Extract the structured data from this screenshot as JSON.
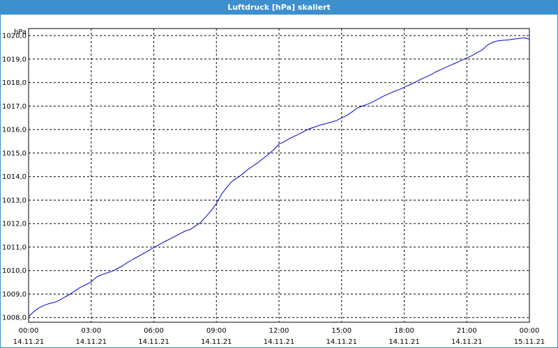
{
  "window": {
    "title": "Luftdruck [hPa] skaliert"
  },
  "colors": {
    "title_bar": "#3d8fce",
    "line": "#0000cc",
    "grid": "#000000",
    "background": "#ffffff"
  },
  "chart_data": {
    "type": "line",
    "title": "Luftdruck [hPa] skaliert",
    "ylabel": "hPa",
    "xlabel": "",
    "ylim": [
      1007.8,
      1020.3
    ],
    "grid": true,
    "grid_style": "dashed",
    "y_ticks": [
      "1008,0",
      "1009,0",
      "1010,0",
      "1011,0",
      "1012,0",
      "1013,0",
      "1014,0",
      "1015,0",
      "1016,0",
      "1017,0",
      "1018,0",
      "1019,0",
      "1020,0"
    ],
    "y_tick_values": [
      1008,
      1009,
      1010,
      1011,
      1012,
      1013,
      1014,
      1015,
      1016,
      1017,
      1018,
      1019,
      1020
    ],
    "x_ticks": [
      {
        "time": "00:00",
        "date": "14.11.21"
      },
      {
        "time": "03:00",
        "date": "14.11.21"
      },
      {
        "time": "06:00",
        "date": "14.11.21"
      },
      {
        "time": "09:00",
        "date": "14.11.21"
      },
      {
        "time": "12:00",
        "date": "14.11.21"
      },
      {
        "time": "15:00",
        "date": "14.11.21"
      },
      {
        "time": "18:00",
        "date": "14.11.21"
      },
      {
        "time": "21:00",
        "date": "14.11.21"
      },
      {
        "time": "00:00",
        "date": "15.11.21"
      }
    ],
    "x_tick_hours": [
      0,
      3,
      6,
      9,
      12,
      15,
      18,
      21,
      24
    ],
    "x_range_hours": [
      0,
      24
    ],
    "series": [
      {
        "x_hours": [
          0,
          0.25,
          0.5,
          0.75,
          1.0,
          1.25,
          1.5,
          1.75,
          2.0,
          2.25,
          2.5,
          2.75,
          3.0,
          3.25,
          3.5,
          3.75,
          4.0,
          4.25,
          4.5,
          4.75,
          5.0,
          5.5,
          6.0,
          6.5,
          7.0,
          7.5,
          7.75,
          8.0,
          8.25,
          8.5,
          8.75,
          9.0,
          9.25,
          9.5,
          9.75,
          10.0,
          10.25,
          10.5,
          10.75,
          11.0,
          11.25,
          11.5,
          11.75,
          12.0,
          12.25,
          12.5,
          12.75,
          13.0,
          13.25,
          13.5,
          13.75,
          14.0,
          14.25,
          14.5,
          14.75,
          15.0,
          15.25,
          15.5,
          15.75,
          16.0,
          16.25,
          16.5,
          16.75,
          17.0,
          17.25,
          17.5,
          17.75,
          18.0,
          18.25,
          18.5,
          18.75,
          19.0,
          19.25,
          19.5,
          19.75,
          20.0,
          20.25,
          20.5,
          20.75,
          21.0,
          21.25,
          21.5,
          21.75,
          22.0,
          22.25,
          22.5,
          22.75,
          23.0,
          23.25,
          23.5,
          23.75,
          24.0
        ],
        "values": [
          1008.05,
          1008.25,
          1008.42,
          1008.52,
          1008.6,
          1008.65,
          1008.75,
          1008.88,
          1009.0,
          1009.15,
          1009.3,
          1009.4,
          1009.52,
          1009.72,
          1009.82,
          1009.9,
          1009.97,
          1010.08,
          1010.2,
          1010.35,
          1010.48,
          1010.72,
          1010.98,
          1011.22,
          1011.45,
          1011.68,
          1011.75,
          1011.9,
          1012.05,
          1012.3,
          1012.55,
          1012.85,
          1013.25,
          1013.55,
          1013.8,
          1013.95,
          1014.1,
          1014.3,
          1014.45,
          1014.6,
          1014.78,
          1014.95,
          1015.15,
          1015.38,
          1015.48,
          1015.62,
          1015.72,
          1015.82,
          1015.95,
          1016.05,
          1016.12,
          1016.2,
          1016.25,
          1016.32,
          1016.38,
          1016.5,
          1016.6,
          1016.75,
          1016.92,
          1017.0,
          1017.08,
          1017.18,
          1017.3,
          1017.42,
          1017.52,
          1017.62,
          1017.7,
          1017.8,
          1017.9,
          1018.0,
          1018.12,
          1018.22,
          1018.32,
          1018.45,
          1018.55,
          1018.65,
          1018.75,
          1018.85,
          1018.95,
          1019.05,
          1019.15,
          1019.28,
          1019.4,
          1019.6,
          1019.72,
          1019.78,
          1019.8,
          1019.82,
          1019.85,
          1019.88,
          1019.9,
          1019.85
        ]
      }
    ]
  }
}
